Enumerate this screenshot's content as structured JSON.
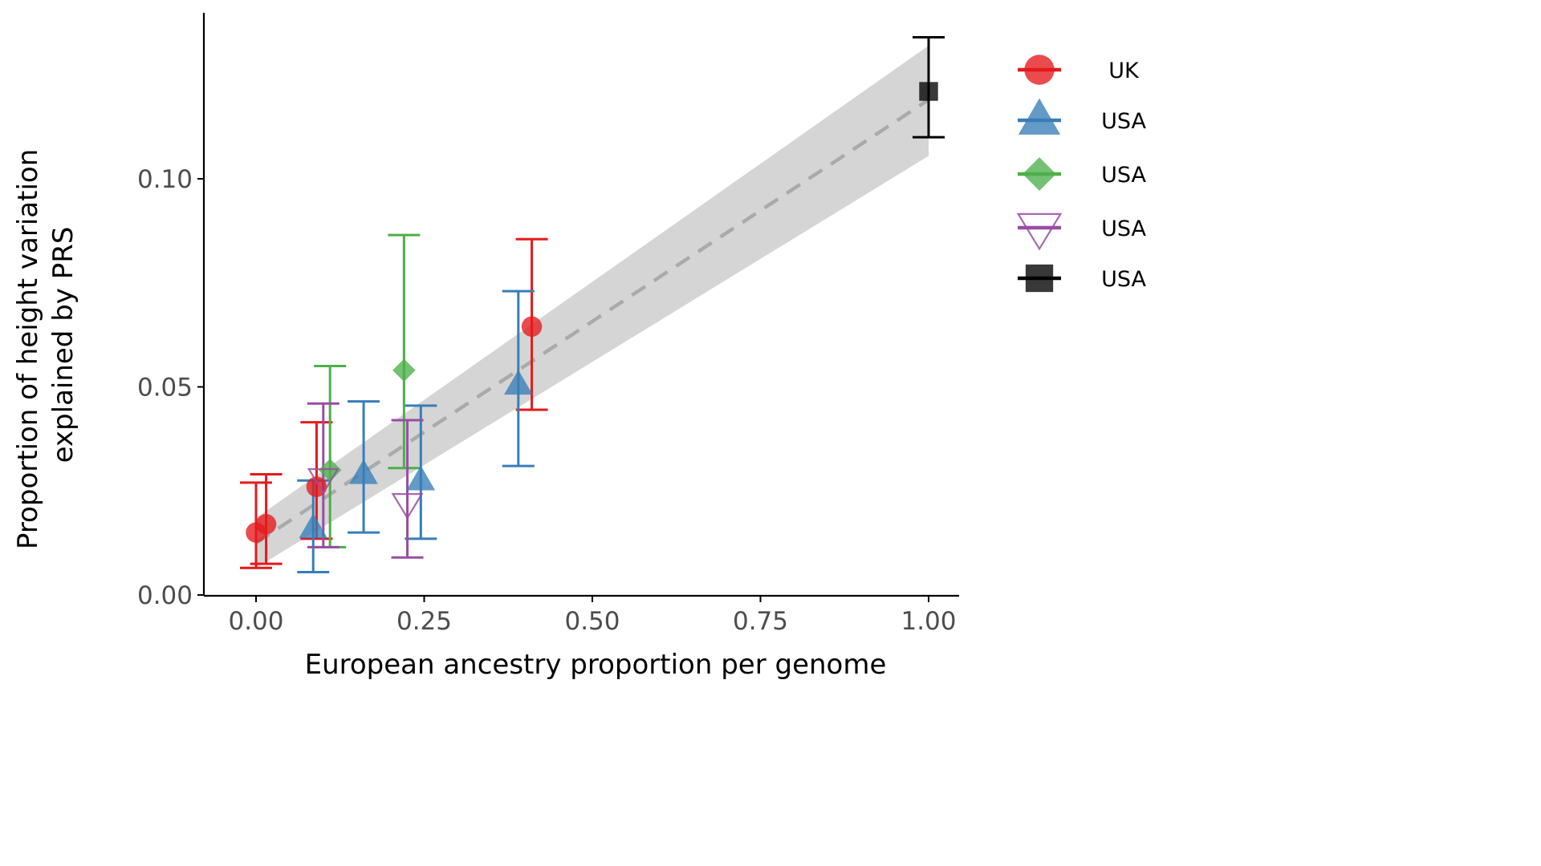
{
  "chart_data": {
    "type": "scatter",
    "title": "",
    "xlabel": "European ancestry proportion per genome",
    "ylabel_lines": [
      "Proportion of height variation",
      "explained by PRS"
    ],
    "xlim": [
      -0.075,
      1.05
    ],
    "ylim": [
      -0.001,
      0.14
    ],
    "x_ticks": [
      0.0,
      0.25,
      0.5,
      0.75,
      1.0
    ],
    "x_tick_labels": [
      "0.00",
      "0.25",
      "0.50",
      "0.75",
      "1.00"
    ],
    "y_ticks": [
      0.0,
      0.05,
      0.1
    ],
    "y_tick_labels": [
      "0.00",
      "0.05",
      "0.10"
    ],
    "grid": false,
    "legend_position": "right",
    "series": [
      {
        "name": "UK",
        "shape": "circle",
        "color": "#e41a1c",
        "points": [
          {
            "x": 0.0,
            "y": 0.015,
            "ymin": 0.0065,
            "ymax": 0.027
          },
          {
            "x": 0.015,
            "y": 0.017,
            "ymin": 0.0075,
            "ymax": 0.029
          },
          {
            "x": 0.09,
            "y": 0.026,
            "ymin": 0.0135,
            "ymax": 0.0415
          },
          {
            "x": 0.41,
            "y": 0.0645,
            "ymin": 0.0445,
            "ymax": 0.0855
          }
        ]
      },
      {
        "name": "USA",
        "shape": "triangle-up",
        "color": "#377eb8",
        "points": [
          {
            "x": 0.085,
            "y": 0.016,
            "ymin": 0.0055,
            "ymax": 0.0275
          },
          {
            "x": 0.16,
            "y": 0.029,
            "ymin": 0.015,
            "ymax": 0.0465
          },
          {
            "x": 0.245,
            "y": 0.0275,
            "ymin": 0.0135,
            "ymax": 0.0455
          },
          {
            "x": 0.39,
            "y": 0.0505,
            "ymin": 0.031,
            "ymax": 0.073
          }
        ]
      },
      {
        "name": "USA",
        "shape": "diamond",
        "color": "#4daf4a",
        "points": [
          {
            "x": 0.11,
            "y": 0.03,
            "ymin": 0.0115,
            "ymax": 0.055
          },
          {
            "x": 0.22,
            "y": 0.054,
            "ymin": 0.0305,
            "ymax": 0.0865
          }
        ]
      },
      {
        "name": "USA",
        "shape": "triangle-down-open",
        "color": "#984ea3",
        "points": [
          {
            "x": 0.1,
            "y": 0.028,
            "ymin": 0.0115,
            "ymax": 0.046
          },
          {
            "x": 0.225,
            "y": 0.022,
            "ymin": 0.009,
            "ymax": 0.042
          }
        ]
      },
      {
        "name": "USA",
        "shape": "square",
        "color": "#000000",
        "points": [
          {
            "x": 1.0,
            "y": 0.121,
            "ymin": 0.11,
            "ymax": 0.134
          }
        ]
      }
    ],
    "trend_line": {
      "style": "dashed",
      "color": "#aaaaaa",
      "x": [
        0.0,
        1.0
      ],
      "y": [
        0.0125,
        0.119
      ],
      "band_lower": [
        0.0065,
        0.1055
      ],
      "band_upper": [
        0.0185,
        0.132
      ],
      "band_color": "#d3d3d3"
    }
  }
}
